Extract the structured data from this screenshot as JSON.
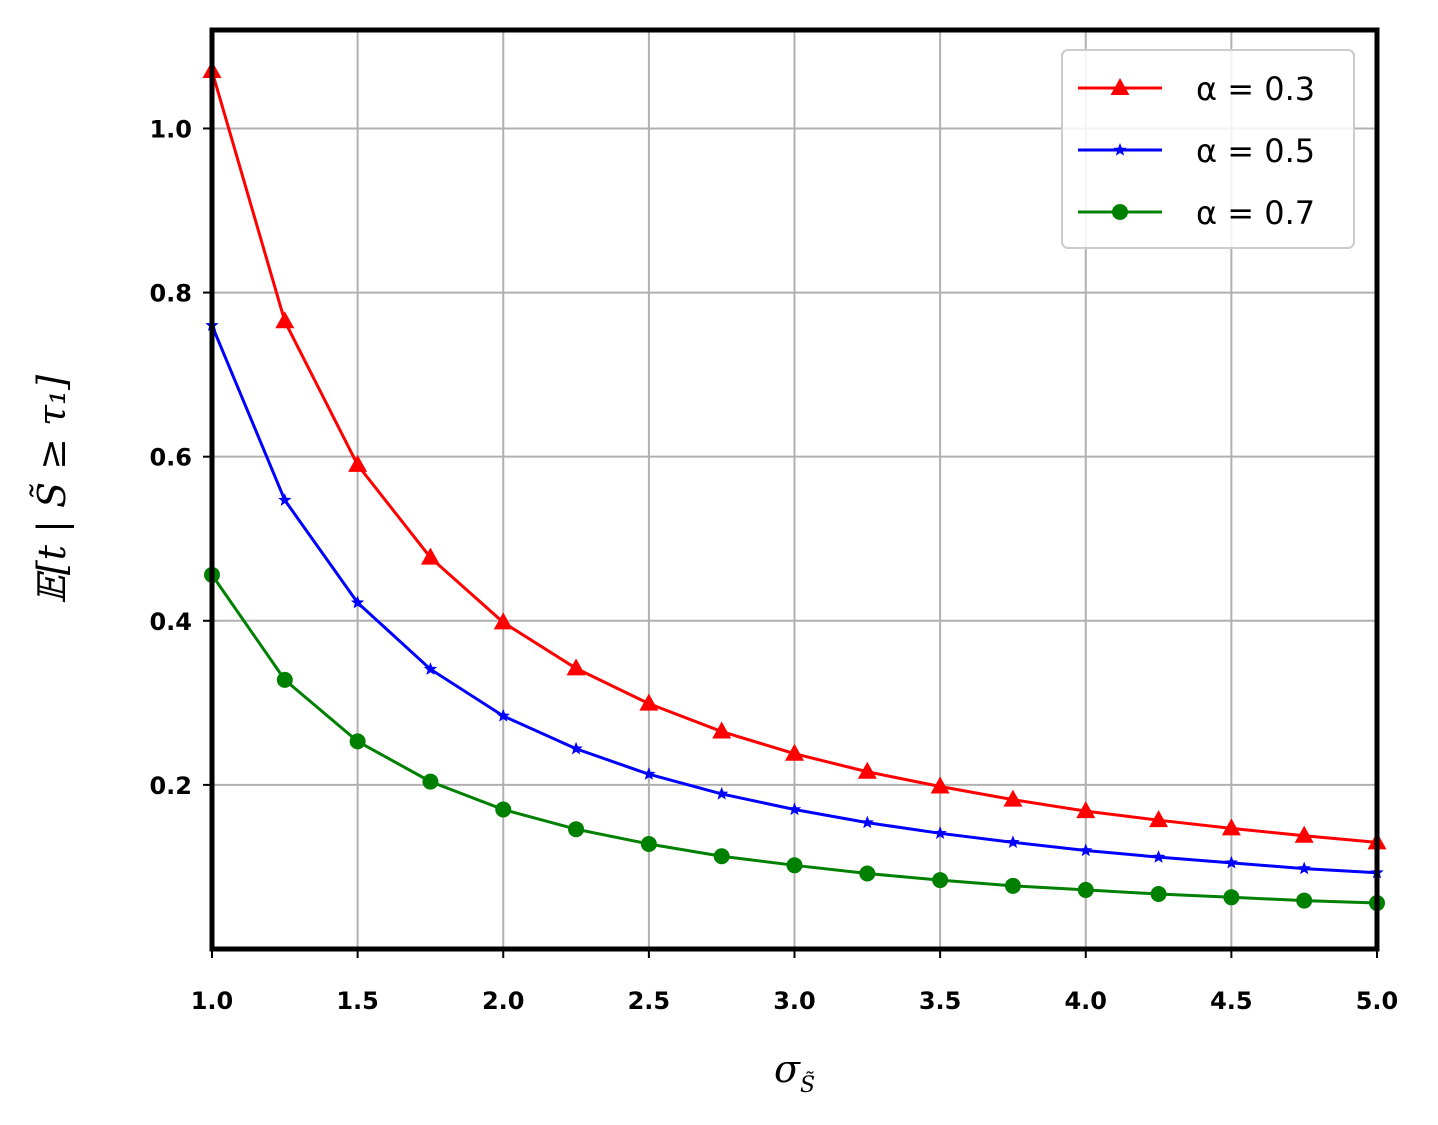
{
  "chart_data": {
    "type": "line",
    "xlabel": "σ",
    "xlabel_sub": "S̃",
    "ylabel": "𝔼[t | S̃ ≥ τ₁]",
    "xlim": [
      1.0,
      5.0
    ],
    "ylim": [
      0.0,
      1.12
    ],
    "xticks": [
      "1.0",
      "1.5",
      "2.0",
      "2.5",
      "3.0",
      "3.5",
      "4.0",
      "4.5",
      "5.0"
    ],
    "yticks": [
      "0.2",
      "0.4",
      "0.6",
      "0.8",
      "1.0"
    ],
    "grid": true,
    "legend_position": "top-right",
    "x": [
      1.0,
      1.25,
      1.5,
      1.75,
      2.0,
      2.25,
      2.5,
      2.75,
      3.0,
      3.25,
      3.5,
      3.75,
      4.0,
      4.25,
      4.5,
      4.75,
      5.0
    ],
    "series": [
      {
        "name": "α = 0.3",
        "color": "#ff0000",
        "marker": "triangle",
        "values": [
          1.07,
          0.765,
          0.59,
          0.477,
          0.398,
          0.342,
          0.299,
          0.265,
          0.238,
          0.216,
          0.198,
          0.182,
          0.168,
          0.157,
          0.147,
          0.138,
          0.13
        ]
      },
      {
        "name": "α = 0.5",
        "color": "#0000ff",
        "marker": "star",
        "values": [
          0.76,
          0.547,
          0.422,
          0.341,
          0.284,
          0.244,
          0.213,
          0.189,
          0.17,
          0.154,
          0.141,
          0.13,
          0.12,
          0.112,
          0.105,
          0.098,
          0.093
        ]
      },
      {
        "name": "α = 0.7",
        "color": "#008000",
        "marker": "circle",
        "values": [
          0.456,
          0.328,
          0.253,
          0.204,
          0.17,
          0.146,
          0.128,
          0.113,
          0.102,
          0.092,
          0.084,
          0.077,
          0.072,
          0.067,
          0.063,
          0.059,
          0.056
        ]
      }
    ]
  }
}
